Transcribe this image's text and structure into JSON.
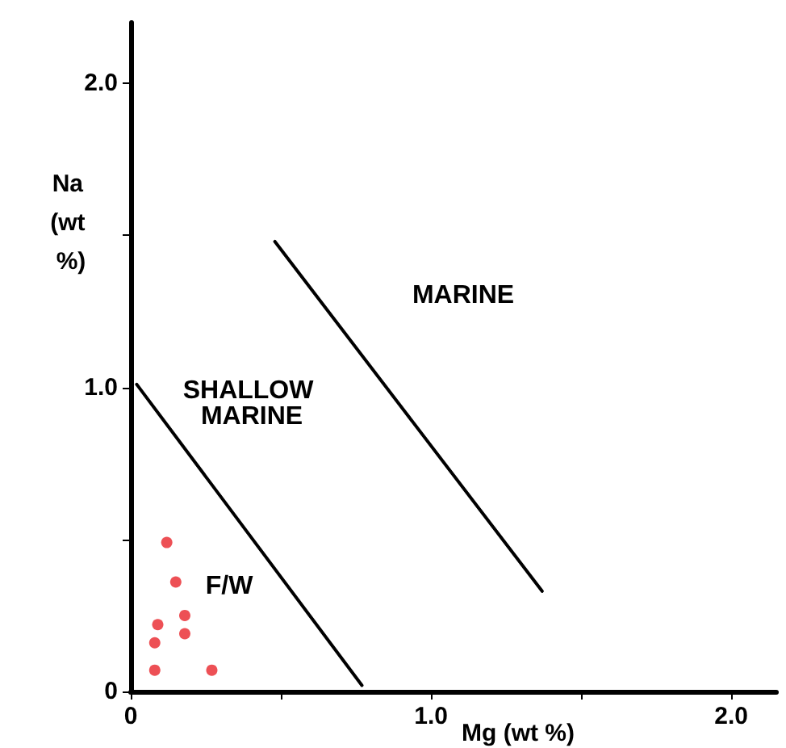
{
  "chart_data": {
    "type": "scatter",
    "xlabel": "Mg (wt %)",
    "ylabel": "Na (wt %)",
    "xlim": [
      0,
      2.15
    ],
    "ylim": [
      0,
      2.2
    ],
    "xticks": [
      {
        "value": 0,
        "label": "0"
      },
      {
        "value": 0.5,
        "label": null
      },
      {
        "value": 1,
        "label": "1.0"
      },
      {
        "value": 1.5,
        "label": null
      },
      {
        "value": 2,
        "label": "2.0"
      }
    ],
    "yticks": [
      {
        "value": 0,
        "label": "0"
      },
      {
        "value": 0.5,
        "label": null
      },
      {
        "value": 1,
        "label": "1.0"
      },
      {
        "value": 1.5,
        "label": null
      },
      {
        "value": 2,
        "label": "2.0"
      }
    ],
    "grid": false,
    "marker": "circle",
    "series": [
      {
        "color": "#e8242b",
        "x": [
          0.12,
          0.15,
          0.18,
          0.09,
          0.08,
          0.18,
          0.08,
          0.27
        ],
        "values": [
          0.49,
          0.36,
          0.25,
          0.22,
          0.16,
          0.19,
          0.07,
          0.07
        ]
      },
      {
        "type": "line",
        "color": "#000000",
        "marker": "none",
        "line_style": "solid",
        "x": [
          0.02,
          0.77
        ],
        "values": [
          1.01,
          0.02
        ]
      },
      {
        "type": "line",
        "color": "#000000",
        "marker": "none",
        "line_style": "solid",
        "x": [
          0.48,
          1.37
        ],
        "values": [
          1.48,
          0.33
        ]
      }
    ],
    "annotations": [
      "MARINE",
      "SHALLOW MARINE",
      "F/W"
    ]
  }
}
